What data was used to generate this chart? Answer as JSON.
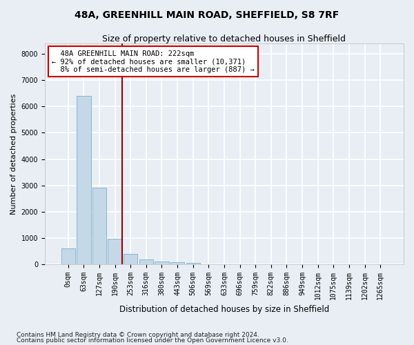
{
  "title1": "48A, GREENHILL MAIN ROAD, SHEFFIELD, S8 7RF",
  "title2": "Size of property relative to detached houses in Sheffield",
  "xlabel": "Distribution of detached houses by size in Sheffield",
  "ylabel": "Number of detached properties",
  "footnote1": "Contains HM Land Registry data © Crown copyright and database right 2024.",
  "footnote2": "Contains public sector information licensed under the Open Government Licence v3.0.",
  "bar_labels": [
    "0sqm",
    "63sqm",
    "127sqm",
    "190sqm",
    "253sqm",
    "316sqm",
    "380sqm",
    "443sqm",
    "506sqm",
    "569sqm",
    "633sqm",
    "696sqm",
    "759sqm",
    "822sqm",
    "886sqm",
    "949sqm",
    "1012sqm",
    "1075sqm",
    "1139sqm",
    "1202sqm",
    "1265sqm"
  ],
  "bar_values": [
    600,
    6400,
    2900,
    980,
    380,
    170,
    100,
    80,
    55,
    0,
    0,
    0,
    0,
    0,
    0,
    0,
    0,
    0,
    0,
    0,
    0
  ],
  "bar_color": "#c5d8e8",
  "bar_edge_color": "#7aaec8",
  "ylim": [
    0,
    8400
  ],
  "yticks": [
    0,
    1000,
    2000,
    3000,
    4000,
    5000,
    6000,
    7000,
    8000
  ],
  "vline_x": 3.45,
  "vline_color": "#990000",
  "annotation_text": "  48A GREENHILL MAIN ROAD: 222sqm  \n← 92% of detached houses are smaller (10,371)\n  8% of semi-detached houses are larger (887) →",
  "annotation_box_color": "#ffffff",
  "annotation_box_edge": "#cc0000",
  "background_color": "#e8eef4",
  "grid_color": "#ffffff",
  "title1_fontsize": 10,
  "title2_fontsize": 9,
  "xlabel_fontsize": 8.5,
  "ylabel_fontsize": 8,
  "tick_fontsize": 7,
  "annotation_fontsize": 7.5,
  "footnote_fontsize": 6.5
}
